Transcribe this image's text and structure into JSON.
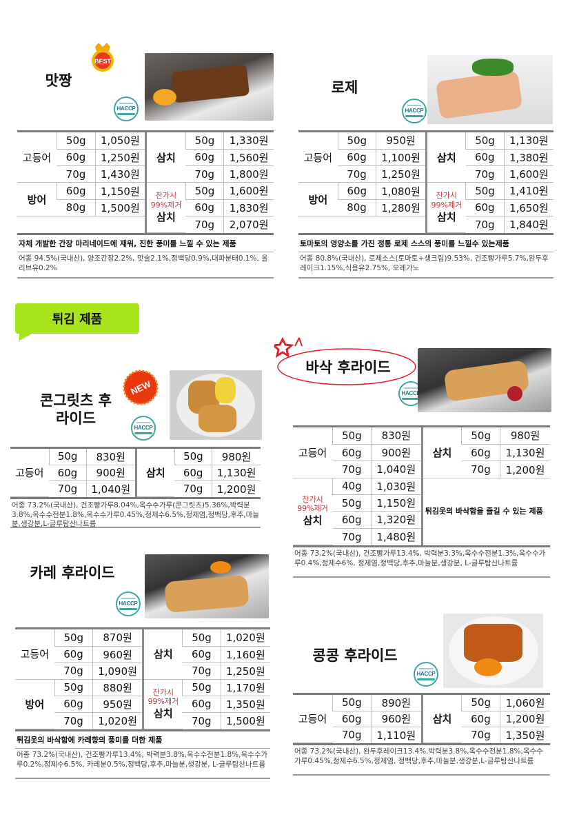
{
  "section_banner": "튀김 제품",
  "badges": {
    "best": "BEST",
    "new": "NEW",
    "haccp": "HACCP"
  },
  "colors": {
    "banner": "#a8e41c",
    "note_red": "#c8323c",
    "border": "#7a7a7a"
  },
  "products": [
    {
      "id": "matjjang",
      "title": "맛짱",
      "left": [
        {
          "name": "고등어",
          "rows": [
            [
              "50g",
              "1,050원"
            ],
            [
              "60g",
              "1,250원"
            ],
            [
              "70g",
              "1,430원"
            ]
          ]
        },
        {
          "name": "방어",
          "rows": [
            [
              "60g",
              "1,150원"
            ],
            [
              "80g",
              "1,500원"
            ]
          ]
        },
        {
          "blank": true,
          "span": 1
        }
      ],
      "right": [
        {
          "name": "삼치",
          "rows": [
            [
              "50g",
              "1,330원"
            ],
            [
              "60g",
              "1,560원"
            ],
            [
              "70g",
              "1,800원"
            ]
          ]
        },
        {
          "note": "잔가시 99%제거",
          "name": "삼치",
          "rows": [
            [
              "50g",
              "1,600원"
            ],
            [
              "60g",
              "1,830원"
            ],
            [
              "70g",
              "2,070원"
            ]
          ]
        }
      ],
      "description": "자체 개발한 간장 마리네이드에 재워, 진한 풍미를 느낄 수 있는 제품",
      "ingredients": "어종 94.5%(국내산), 양조간장2.2%, 맛술2.1%,정백당0.9%,대파분태0.1%, 올리브유0.2%"
    },
    {
      "id": "rose",
      "title": "로제",
      "left": [
        {
          "name": "고등어",
          "rows": [
            [
              "50g",
              "950원"
            ],
            [
              "60g",
              "1,100원"
            ],
            [
              "70g",
              "1,250원"
            ]
          ]
        },
        {
          "name": "방어",
          "rows": [
            [
              "60g",
              "1,080원"
            ],
            [
              "80g",
              "1,280원"
            ]
          ]
        },
        {
          "blank": true,
          "span": 1
        }
      ],
      "right": [
        {
          "name": "삼치",
          "rows": [
            [
              "50g",
              "1,130원"
            ],
            [
              "60g",
              "1,380원"
            ],
            [
              "70g",
              "1,600원"
            ]
          ]
        },
        {
          "note": "잔가시 99%제거",
          "name": "삼치",
          "rows": [
            [
              "50g",
              "1,410원"
            ],
            [
              "60g",
              "1,650원"
            ],
            [
              "70g",
              "1,840원"
            ]
          ]
        }
      ],
      "description": "토마토의 영양소를 가진 정통 로제 스스의 풍미를 느낄수 있는제품",
      "ingredients": "어종 80.8%(국내산), 로제소스(토마토+생크림)9.53%, 건조빵가루5.7%,완두후레이크1.15%,식용유2.75%, 오레가노"
    },
    {
      "id": "corngrits",
      "title": "콘그릿츠 후라이드",
      "left": [
        {
          "name": "고등어",
          "rows": [
            [
              "50g",
              "830원"
            ],
            [
              "60g",
              "900원"
            ],
            [
              "70g",
              "1,040원"
            ]
          ]
        }
      ],
      "right": [
        {
          "name": "삼치",
          "rows": [
            [
              "50g",
              "980원"
            ],
            [
              "60g",
              "1,130원"
            ],
            [
              "70g",
              "1,200원"
            ]
          ]
        }
      ],
      "ingredients": "어종 73.2%(국내산), 건조빵가루8.04%,옥수수가루(콘그릿츠)5.36%,박력분3.8%,옥수수전분1.8%,옥수수가루0.45%,정제수6.5%,정제염,정백당,후추,마늘분,생강분,L-글루탐산나트륨"
    },
    {
      "id": "basak",
      "title": "바삭 후라이드",
      "left": [
        {
          "name": "고등어",
          "rows": [
            [
              "50g",
              "830원"
            ],
            [
              "60g",
              "900원"
            ],
            [
              "70g",
              "1,040원"
            ]
          ]
        },
        {
          "note": "잔가시 99%제거",
          "name": "삼치",
          "rows": [
            [
              "40g",
              "1,030원"
            ],
            [
              "50g",
              "1,150원"
            ],
            [
              "60g",
              "1,320원"
            ],
            [
              "70g",
              "1,480원"
            ]
          ]
        }
      ],
      "right": [
        {
          "name": "삼치",
          "rows": [
            [
              "50g",
              "980원"
            ],
            [
              "60g",
              "1,130원"
            ],
            [
              "70g",
              "1,200원"
            ]
          ]
        },
        {
          "text": "튀김옷의 바삭함을 즐길 수 있는 제품",
          "span": 4
        }
      ],
      "ingredients": "어종 73.2%(국내산), 건조빵가루13.4%, 박력분3.3%,옥수수전분1.3%,옥수수가루0.4%,정제수6%, 정제염,정백당,후추,마늘분,생강분, L-글루탐산나트륨"
    },
    {
      "id": "curry",
      "title": "카레 후라이드",
      "left": [
        {
          "name": "고등어",
          "rows": [
            [
              "50g",
              "870원"
            ],
            [
              "60g",
              "960원"
            ],
            [
              "70g",
              "1,090원"
            ]
          ]
        },
        {
          "name": "방어",
          "rows": [
            [
              "50g",
              "880원"
            ],
            [
              "60g",
              "950원"
            ],
            [
              "70g",
              "1,020원"
            ]
          ]
        }
      ],
      "right": [
        {
          "name": "삼치",
          "rows": [
            [
              "50g",
              "1,020원"
            ],
            [
              "60g",
              "1,160원"
            ],
            [
              "70g",
              "1,250원"
            ]
          ]
        },
        {
          "note": "잔가시 99%제거",
          "name": "삼치",
          "rows": [
            [
              "50g",
              "1,170원"
            ],
            [
              "60g",
              "1,350원"
            ],
            [
              "70g",
              "1,500원"
            ]
          ]
        }
      ],
      "description": "튀김옷의 바삭함에 카레향의 풍미를 더한 제품",
      "ingredients": "어종 73.2%(국내산), 건조빵가루13.4%, 박력분3.8%,옥수수전분1.8%,옥수수가루0.2%,정제수6.5%, 카레분0.5%,정백당,후추,마늘분,생강분, L-글루탐산나트륨"
    },
    {
      "id": "kongkong",
      "title": "콩콩 후라이드",
      "left": [
        {
          "name": "고등어",
          "rows": [
            [
              "50g",
              "890원"
            ],
            [
              "60g",
              "960원"
            ],
            [
              "70g",
              "1,110원"
            ]
          ]
        }
      ],
      "right": [
        {
          "name": "삼치",
          "rows": [
            [
              "50g",
              "1,060원"
            ],
            [
              "60g",
              "1,200원"
            ],
            [
              "70g",
              "1,350원"
            ]
          ]
        }
      ],
      "ingredients": "어종 73.2%(국내산), 완두후레이크13.4%,박력분3.8%,옥수수전분1.8%,옥수수가루0.45%,정제수6.5%,정제염, 정백당,후추,마늘분,생강분,L-글루탐산나트륨"
    }
  ]
}
